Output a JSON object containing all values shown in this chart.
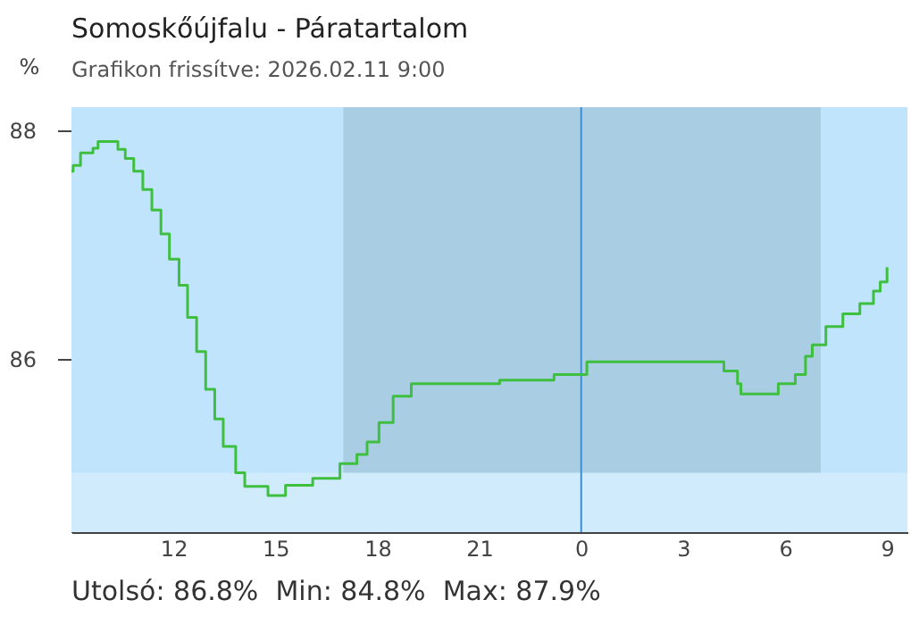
{
  "chart_data": {
    "type": "step",
    "title": "Somoskőújfalu - Páratartalom",
    "subtitle": "Grafikon frissítve: 2026.02.11 9:00",
    "ylabel": "%",
    "annotations": [
      "Utolsó: 86.8%  Min: 84.8%  Max: 87.9%"
    ],
    "x": [
      "2026-02-10T09:00",
      "2026-02-10T09:03",
      "2026-02-10T09:16",
      "2026-02-10T09:38",
      "2026-02-10T09:47",
      "2026-02-10T10:16",
      "2026-02-10T10:22",
      "2026-02-10T10:35",
      "2026-02-10T10:50",
      "2026-02-10T11:06",
      "2026-02-10T11:22",
      "2026-02-10T11:38",
      "2026-02-10T11:53",
      "2026-02-10T12:10",
      "2026-02-10T12:25",
      "2026-02-10T12:41",
      "2026-02-10T12:57",
      "2026-02-10T13:13",
      "2026-02-10T13:28",
      "2026-02-10T13:50",
      "2026-02-10T14:06",
      "2026-02-10T14:47",
      "2026-02-10T15:18",
      "2026-02-10T16:06",
      "2026-02-10T16:54",
      "2026-02-10T17:24",
      "2026-02-10T17:42",
      "2026-02-10T18:03",
      "2026-02-10T18:28",
      "2026-02-10T19:00",
      "2026-02-10T20:36",
      "2026-02-10T21:36",
      "2026-02-10T23:12",
      "2026-02-11T00:06",
      "2026-02-11T00:10",
      "2026-02-11T02:22",
      "2026-02-11T03:54",
      "2026-02-11T04:12",
      "2026-02-11T04:36",
      "2026-02-11T04:42",
      "2026-02-11T05:36",
      "2026-02-11T05:48",
      "2026-02-11T06:18",
      "2026-02-11T06:36",
      "2026-02-11T06:48",
      "2026-02-11T07:12",
      "2026-02-11T07:42",
      "2026-02-11T08:12",
      "2026-02-11T08:36",
      "2026-02-11T08:48",
      "2026-02-11T09:00"
    ],
    "series": [
      {
        "color": "#3fbf3f",
        "values": [
          87.64,
          87.69,
          87.8,
          87.84,
          87.9,
          87.9,
          87.83,
          87.75,
          87.64,
          87.48,
          87.3,
          87.09,
          86.87,
          86.64,
          86.36,
          86.06,
          85.73,
          85.47,
          85.23,
          85.0,
          84.88,
          84.8,
          84.89,
          84.95,
          85.08,
          85.16,
          85.27,
          85.44,
          85.67,
          85.78,
          85.78,
          85.81,
          85.86,
          85.86,
          85.97,
          85.97,
          85.97,
          85.89,
          85.78,
          85.69,
          85.69,
          85.78,
          85.86,
          86.02,
          86.12,
          86.28,
          86.39,
          86.48,
          86.59,
          86.67,
          86.8
        ]
      }
    ],
    "xlim": [
      "2026-02-10T09:00",
      "2026-02-11T09:36"
    ],
    "xticks": [
      {
        "value": "2026-02-10T12:00",
        "label": "12"
      },
      {
        "value": "2026-02-10T15:00",
        "label": "15"
      },
      {
        "value": "2026-02-10T18:00",
        "label": "18"
      },
      {
        "value": "2026-02-10T21:00",
        "label": "21"
      },
      {
        "value": "2026-02-11T00:00",
        "label": "0"
      },
      {
        "value": "2026-02-11T03:00",
        "label": "3"
      },
      {
        "value": "2026-02-11T06:00",
        "label": "6"
      },
      {
        "value": "2026-02-11T09:00",
        "label": "9"
      }
    ],
    "ylim": [
      84.48,
      88.2
    ],
    "yticks": [
      86,
      88
    ],
    "bands": [
      {
        "axis": "x",
        "from": "2026-02-10T09:00",
        "to": "2026-02-11T09:36",
        "color": "#bfe4fc"
      },
      {
        "axis": "x",
        "from": "2026-02-10T17:00",
        "to": "2026-02-11T07:03",
        "color": "#a9cde3"
      },
      {
        "axis": "y",
        "from": 84.48,
        "to": 85,
        "color": "#d0ecfc"
      }
    ],
    "ref_lines": [
      {
        "axis": "x",
        "value": "2026-02-11T00:00",
        "color": "#3a8fd6"
      }
    ]
  }
}
